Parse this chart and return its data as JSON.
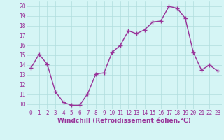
{
  "x": [
    0,
    1,
    2,
    3,
    4,
    5,
    6,
    7,
    8,
    9,
    10,
    11,
    12,
    13,
    14,
    15,
    16,
    17,
    18,
    19,
    20,
    21,
    22,
    23
  ],
  "y": [
    13.7,
    15.1,
    14.1,
    11.3,
    10.2,
    9.9,
    9.9,
    11.1,
    13.1,
    13.2,
    15.3,
    16.0,
    17.5,
    17.2,
    17.6,
    18.4,
    18.5,
    20.0,
    19.8,
    18.8,
    15.3,
    13.5,
    14.0,
    13.4
  ],
  "line_color": "#993399",
  "marker": "+",
  "marker_size": 4,
  "marker_edge_width": 1.0,
  "line_width": 1.0,
  "bg_color": "#d5f5f5",
  "grid_color": "#b0dede",
  "xlabel": "Windchill (Refroidissement éolien,°C)",
  "ylim": [
    9.5,
    20.5
  ],
  "xlim": [
    -0.5,
    23.5
  ],
  "yticks": [
    10,
    11,
    12,
    13,
    14,
    15,
    16,
    17,
    18,
    19,
    20
  ],
  "xticks": [
    0,
    1,
    2,
    3,
    4,
    5,
    6,
    7,
    8,
    9,
    10,
    11,
    12,
    13,
    14,
    15,
    16,
    17,
    18,
    19,
    20,
    21,
    22,
    23
  ],
  "tick_labelsize": 5.5,
  "xlabel_fontsize": 6.5,
  "figsize": [
    3.2,
    2.0
  ],
  "dpi": 100
}
